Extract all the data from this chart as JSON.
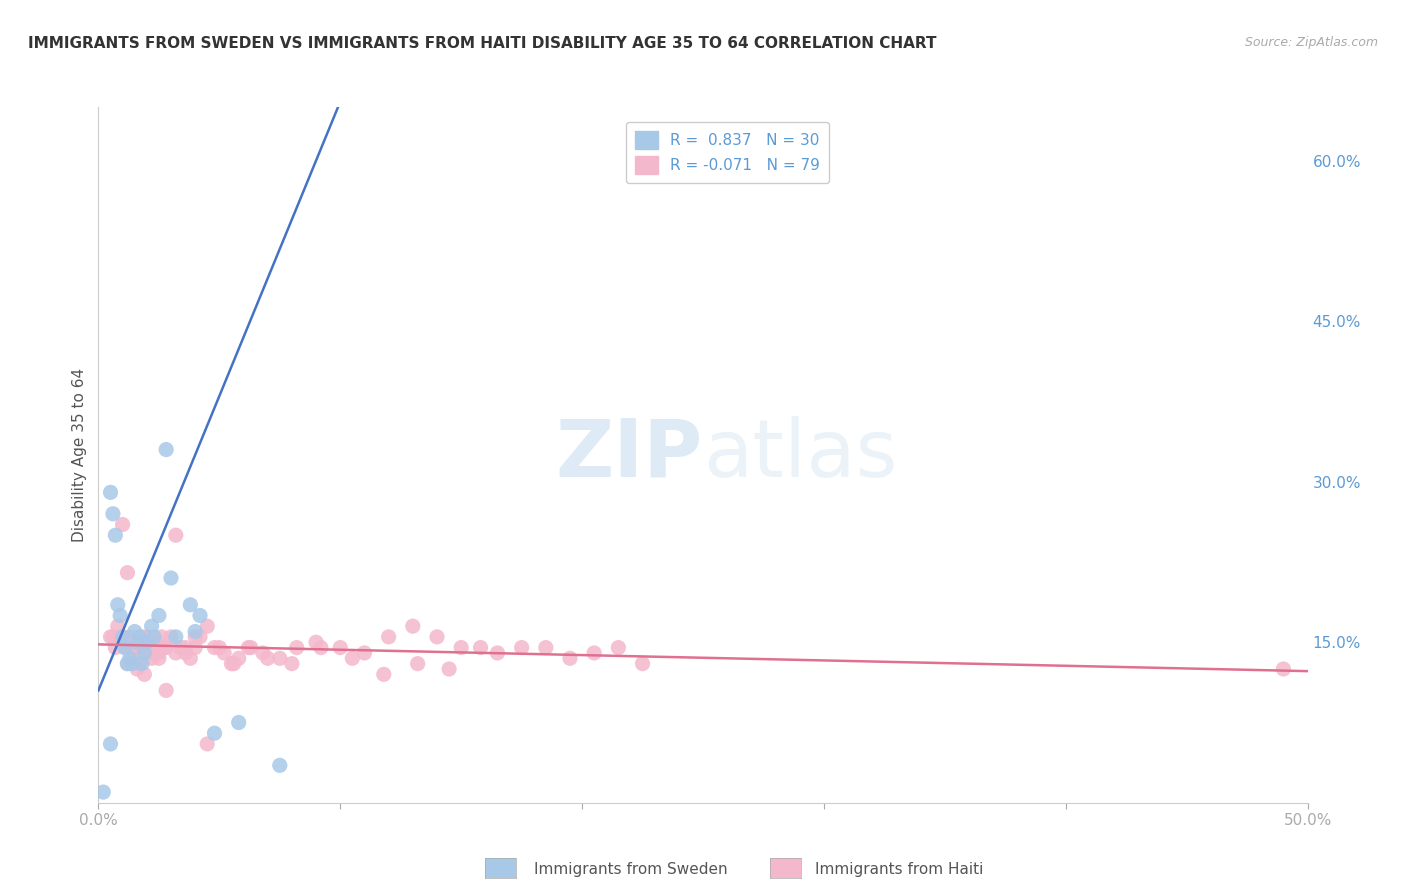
{
  "title": "IMMIGRANTS FROM SWEDEN VS IMMIGRANTS FROM HAITI DISABILITY AGE 35 TO 64 CORRELATION CHART",
  "source": "Source: ZipAtlas.com",
  "ylabel": "Disability Age 35 to 64",
  "xlim": [
    0.0,
    0.5
  ],
  "ylim": [
    0.0,
    0.65
  ],
  "sweden_color": "#a8c8e8",
  "sweden_line_color": "#4472c4",
  "haiti_color": "#f4b8cc",
  "haiti_line_color": "#e07090",
  "sweden_R": 0.837,
  "sweden_N": 30,
  "haiti_R": -0.071,
  "haiti_N": 79,
  "watermark_zip": "ZIP",
  "watermark_atlas": "atlas",
  "background_color": "#ffffff",
  "grid_color": "#cccccc",
  "sweden_line_intercept": 0.105,
  "sweden_line_slope": 5.5,
  "haiti_line_intercept": 0.148,
  "haiti_line_slope": -0.05,
  "sweden_scatter_x": [
    0.002,
    0.005,
    0.005,
    0.006,
    0.007,
    0.008,
    0.009,
    0.01,
    0.011,
    0.012,
    0.013,
    0.014,
    0.015,
    0.016,
    0.017,
    0.018,
    0.019,
    0.02,
    0.022,
    0.023,
    0.025,
    0.028,
    0.03,
    0.032,
    0.038,
    0.04,
    0.042,
    0.048,
    0.058,
    0.075
  ],
  "sweden_scatter_y": [
    0.01,
    0.055,
    0.29,
    0.27,
    0.25,
    0.185,
    0.175,
    0.155,
    0.145,
    0.13,
    0.135,
    0.13,
    0.16,
    0.15,
    0.155,
    0.13,
    0.14,
    0.15,
    0.165,
    0.155,
    0.175,
    0.33,
    0.21,
    0.155,
    0.185,
    0.16,
    0.175,
    0.065,
    0.075,
    0.035
  ],
  "haiti_scatter_x": [
    0.005,
    0.006,
    0.007,
    0.008,
    0.009,
    0.01,
    0.011,
    0.012,
    0.013,
    0.014,
    0.015,
    0.016,
    0.017,
    0.018,
    0.019,
    0.02,
    0.021,
    0.022,
    0.023,
    0.024,
    0.025,
    0.026,
    0.027,
    0.028,
    0.03,
    0.032,
    0.034,
    0.036,
    0.038,
    0.04,
    0.042,
    0.045,
    0.048,
    0.052,
    0.055,
    0.058,
    0.062,
    0.068,
    0.075,
    0.082,
    0.09,
    0.1,
    0.11,
    0.12,
    0.13,
    0.14,
    0.15,
    0.165,
    0.175,
    0.185,
    0.195,
    0.205,
    0.215,
    0.225,
    0.01,
    0.012,
    0.014,
    0.016,
    0.018,
    0.02,
    0.022,
    0.025,
    0.028,
    0.032,
    0.036,
    0.04,
    0.045,
    0.05,
    0.056,
    0.063,
    0.07,
    0.08,
    0.092,
    0.105,
    0.118,
    0.132,
    0.145,
    0.158,
    0.49
  ],
  "haiti_scatter_y": [
    0.155,
    0.155,
    0.145,
    0.165,
    0.155,
    0.15,
    0.145,
    0.13,
    0.155,
    0.14,
    0.145,
    0.15,
    0.13,
    0.145,
    0.12,
    0.155,
    0.14,
    0.135,
    0.145,
    0.15,
    0.14,
    0.155,
    0.145,
    0.145,
    0.155,
    0.25,
    0.145,
    0.14,
    0.135,
    0.145,
    0.155,
    0.165,
    0.145,
    0.14,
    0.13,
    0.135,
    0.145,
    0.14,
    0.135,
    0.145,
    0.15,
    0.145,
    0.14,
    0.155,
    0.165,
    0.155,
    0.145,
    0.14,
    0.145,
    0.145,
    0.135,
    0.14,
    0.145,
    0.13,
    0.26,
    0.215,
    0.145,
    0.125,
    0.155,
    0.14,
    0.145,
    0.135,
    0.105,
    0.14,
    0.145,
    0.155,
    0.055,
    0.145,
    0.13,
    0.145,
    0.135,
    0.13,
    0.145,
    0.135,
    0.12,
    0.13,
    0.125,
    0.145,
    0.125
  ]
}
